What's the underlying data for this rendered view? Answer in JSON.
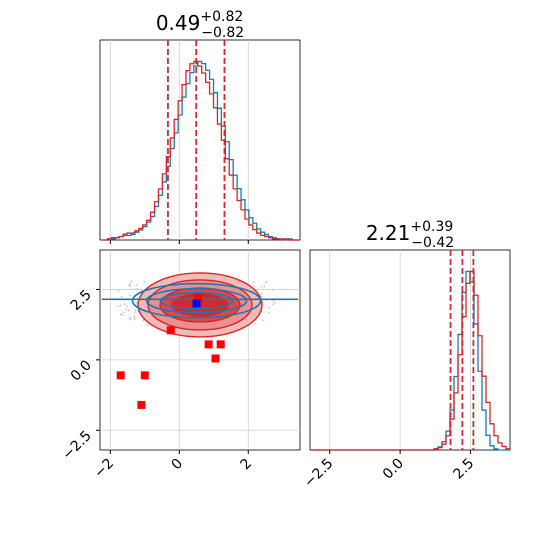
{
  "chart_data": {
    "type": "corner",
    "titles": {
      "x": {
        "base": "0.49",
        "sup": "+0.82",
        "sub": "−0.82"
      },
      "y": {
        "base": "2.21",
        "sup": "+0.39",
        "sub": "−0.42"
      }
    },
    "axes": {
      "x": {
        "range": [
          -2.3,
          3.5
        ],
        "ticks": [
          -2,
          0,
          2
        ],
        "tick_labels": [
          "−2",
          "0",
          "2"
        ]
      },
      "y": {
        "range": [
          -3.2,
          3.9
        ],
        "ticks": [
          -2.5,
          0.0,
          2.5
        ],
        "tick_labels": [
          "−2.5",
          "0.0",
          "2.5"
        ]
      },
      "grid": true
    },
    "colors": {
      "series_a": "#1f77b4",
      "series_b": "#d62728",
      "marker": "#ff0000",
      "point": "#0000ff"
    },
    "series": [
      {
        "color_key": "series_a",
        "x_hist": {
          "bin_edges": [
            -2.2,
            3.5
          ],
          "counts": [
            0,
            1,
            1,
            2,
            3,
            4,
            4,
            5,
            7,
            9,
            12,
            16,
            21,
            30,
            40,
            52,
            66,
            82,
            96,
            112,
            128,
            140,
            150,
            156,
            160,
            158,
            152,
            144,
            132,
            118,
            102,
            88,
            72,
            58,
            46,
            36,
            27,
            20,
            15,
            10,
            7,
            5,
            3,
            2,
            1,
            1,
            0,
            1,
            0,
            0
          ]
        },
        "x_quantile_lines": [
          -0.33,
          0.49,
          1.31
        ],
        "y_hist": {
          "bin_edges": [
            -3.2,
            3.9
          ],
          "counts": [
            0,
            0,
            0,
            0,
            0,
            0,
            0,
            0,
            0,
            0,
            0,
            0,
            0,
            0,
            0,
            0,
            0,
            0,
            0,
            0,
            0,
            0,
            0,
            0,
            0,
            0,
            0,
            0,
            0,
            0,
            0,
            1,
            3,
            8,
            18,
            38,
            70,
            110,
            150,
            170,
            160,
            120,
            75,
            38,
            14,
            4,
            1,
            0,
            0,
            0
          ]
        },
        "y_quantile_lines": [
          1.79,
          2.21,
          2.6
        ],
        "contour_center": [
          0.5,
          2.1
        ]
      },
      {
        "color_key": "series_b",
        "x_hist": {
          "bin_edges": [
            -2.2,
            3.5
          ],
          "counts": [
            0,
            1,
            2,
            2,
            3,
            5,
            6,
            6,
            8,
            10,
            13,
            17,
            24,
            33,
            44,
            57,
            72,
            88,
            104,
            120,
            134,
            146,
            152,
            154,
            150,
            144,
            136,
            126,
            114,
            100,
            86,
            70,
            56,
            44,
            34,
            26,
            18,
            13,
            9,
            6,
            4,
            3,
            2,
            1,
            1,
            0,
            1,
            0,
            0,
            0
          ]
        },
        "x_quantile_lines": [
          -0.33,
          0.49,
          1.31
        ],
        "y_hist": {
          "bin_edges": [
            -3.2,
            3.9
          ],
          "counts": [
            0,
            0,
            0,
            0,
            0,
            0,
            0,
            0,
            0,
            0,
            0,
            0,
            0,
            0,
            0,
            0,
            0,
            0,
            0,
            0,
            0,
            0,
            0,
            0,
            0,
            0,
            0,
            0,
            0,
            0,
            0,
            1,
            2,
            5,
            12,
            26,
            48,
            80,
            112,
            140,
            150,
            130,
            96,
            62,
            40,
            22,
            12,
            6,
            3,
            1
          ]
        },
        "y_quantile_lines": [
          1.79,
          2.21,
          2.6
        ],
        "contour_center": [
          0.6,
          1.95
        ]
      }
    ],
    "markers": [
      {
        "x": -1.7,
        "y": -0.55
      },
      {
        "x": -1.0,
        "y": -0.55
      },
      {
        "x": -1.1,
        "y": -1.6
      },
      {
        "x": -0.25,
        "y": 1.05
      },
      {
        "x": 0.85,
        "y": 0.55
      },
      {
        "x": 1.2,
        "y": 0.55
      },
      {
        "x": 1.05,
        "y": 0.05
      },
      {
        "x": 0.55,
        "y": 2.2
      }
    ],
    "point": {
      "x": 0.5,
      "y": 2.0
    }
  }
}
